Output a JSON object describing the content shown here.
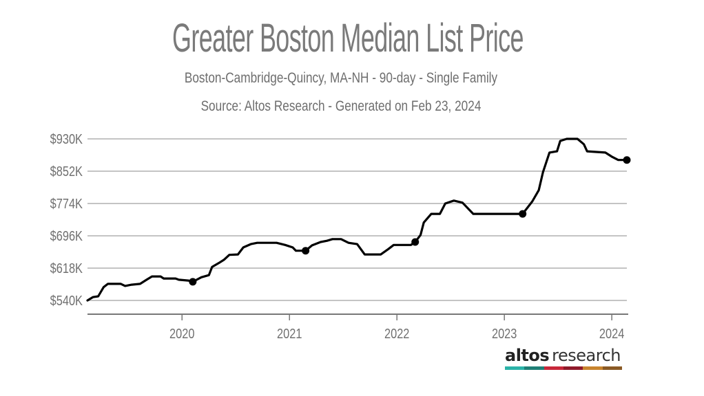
{
  "chart_data": {
    "type": "line",
    "title": "Greater Boston Median List Price",
    "subtitle": "Boston-Cambridge-Quincy, MA-NH - 90-day - Single Family",
    "source": "Source: Altos Research - Generated on Feb 23, 2024",
    "xlabel": "",
    "ylabel": "",
    "xlim": [
      2019.12,
      2024.14
    ],
    "ylim": [
      540,
      930
    ],
    "y_unit": "K USD",
    "grid": true,
    "yticks": [
      {
        "value": 930,
        "label": "$930K"
      },
      {
        "value": 852,
        "label": "$852K"
      },
      {
        "value": 774,
        "label": "$774K"
      },
      {
        "value": 696,
        "label": "$696K"
      },
      {
        "value": 618,
        "label": "$618K"
      },
      {
        "value": 540,
        "label": "$540K"
      }
    ],
    "xticks": [
      {
        "value": 2020,
        "label": "2020"
      },
      {
        "value": 2021,
        "label": "2021"
      },
      {
        "value": 2022,
        "label": "2022"
      },
      {
        "value": 2023,
        "label": "2023"
      },
      {
        "value": 2024,
        "label": "2024"
      }
    ],
    "series": [
      {
        "name": "Median List Price",
        "color": "#000000",
        "points": [
          [
            2019.12,
            540
          ],
          [
            2019.17,
            548
          ],
          [
            2019.22,
            550
          ],
          [
            2019.27,
            572
          ],
          [
            2019.31,
            580
          ],
          [
            2019.43,
            580
          ],
          [
            2019.47,
            575
          ],
          [
            2019.53,
            578
          ],
          [
            2019.61,
            580
          ],
          [
            2019.67,
            590
          ],
          [
            2019.72,
            598
          ],
          [
            2019.8,
            598
          ],
          [
            2019.83,
            593
          ],
          [
            2019.94,
            593
          ],
          [
            2019.97,
            590
          ],
          [
            2020.06,
            588
          ],
          [
            2020.1,
            585
          ],
          [
            2020.18,
            596
          ],
          [
            2020.25,
            601
          ],
          [
            2020.28,
            621
          ],
          [
            2020.34,
            630
          ],
          [
            2020.39,
            638
          ],
          [
            2020.44,
            650
          ],
          [
            2020.52,
            651
          ],
          [
            2020.57,
            668
          ],
          [
            2020.64,
            676
          ],
          [
            2020.7,
            679
          ],
          [
            2020.88,
            679
          ],
          [
            2020.96,
            674
          ],
          [
            2021.03,
            668
          ],
          [
            2021.06,
            660
          ],
          [
            2021.15,
            660
          ],
          [
            2021.21,
            673
          ],
          [
            2021.29,
            681
          ],
          [
            2021.35,
            684
          ],
          [
            2021.4,
            688
          ],
          [
            2021.48,
            688
          ],
          [
            2021.55,
            679
          ],
          [
            2021.63,
            676
          ],
          [
            2021.7,
            651
          ],
          [
            2021.85,
            651
          ],
          [
            2021.92,
            664
          ],
          [
            2021.97,
            674
          ],
          [
            2022.13,
            674
          ],
          [
            2022.17,
            681
          ],
          [
            2022.22,
            698
          ],
          [
            2022.25,
            728
          ],
          [
            2022.32,
            749
          ],
          [
            2022.4,
            749
          ],
          [
            2022.45,
            774
          ],
          [
            2022.53,
            781
          ],
          [
            2022.61,
            776
          ],
          [
            2022.71,
            749
          ],
          [
            2023.13,
            749
          ],
          [
            2023.17,
            749
          ],
          [
            2023.26,
            779
          ],
          [
            2023.32,
            806
          ],
          [
            2023.36,
            850
          ],
          [
            2023.42,
            897
          ],
          [
            2023.49,
            900
          ],
          [
            2023.52,
            925
          ],
          [
            2023.58,
            930
          ],
          [
            2023.68,
            930
          ],
          [
            2023.74,
            917
          ],
          [
            2023.77,
            900
          ],
          [
            2023.94,
            897
          ],
          [
            2024.0,
            887
          ],
          [
            2024.06,
            879
          ],
          [
            2024.14,
            879
          ]
        ],
        "markers": [
          [
            2020.1,
            585
          ],
          [
            2021.15,
            660
          ],
          [
            2022.17,
            681
          ],
          [
            2023.17,
            749
          ],
          [
            2024.14,
            879
          ]
        ]
      }
    ]
  },
  "logo": {
    "brand_bold": "altos",
    "brand_light": "research",
    "stripe_colors": [
      "#2bb3a8",
      "#1f8077",
      "#c8283a",
      "#8f1a2a",
      "#c8842e",
      "#8a5a25"
    ]
  }
}
